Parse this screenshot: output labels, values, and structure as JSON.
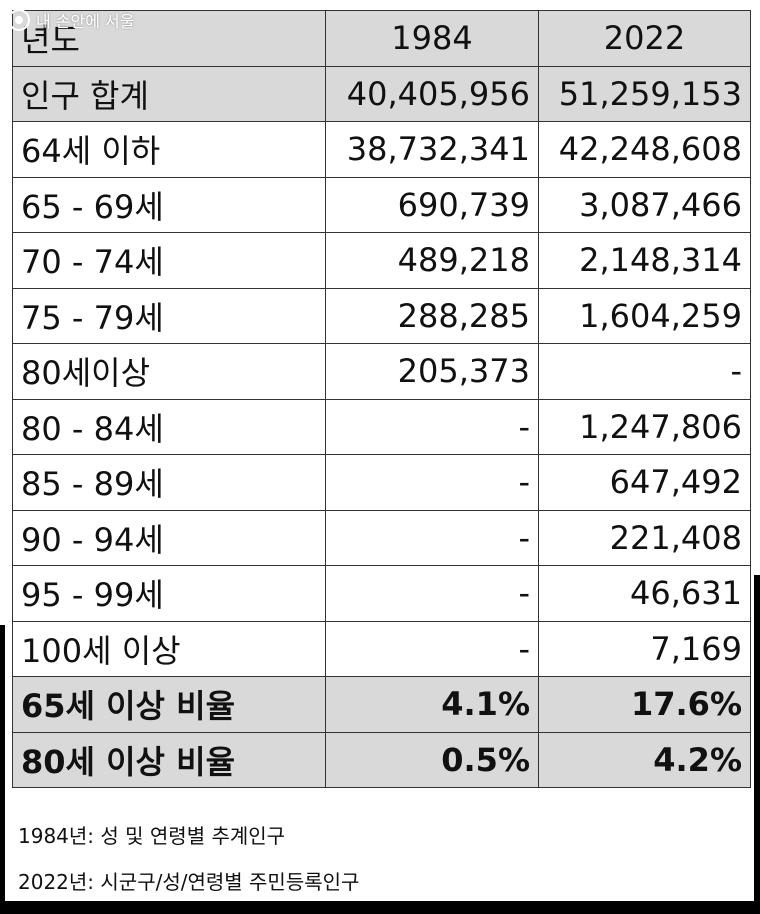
{
  "watermark": {
    "text": "내 손안에 서울"
  },
  "table": {
    "header": {
      "label": "년도",
      "col1": "1984",
      "col2": "2022"
    },
    "total": {
      "label": "인구 합계",
      "v1984": "40,405,956",
      "v2022": "51,259,153"
    },
    "rows": [
      {
        "label": "64세 이하",
        "v1984": "38,732,341",
        "v2022": "42,248,608"
      },
      {
        "label": "65 - 69세",
        "v1984": "690,739",
        "v2022": "3,087,466"
      },
      {
        "label": "70 - 74세",
        "v1984": "489,218",
        "v2022": "2,148,314"
      },
      {
        "label": "75 - 79세",
        "v1984": "288,285",
        "v2022": "1,604,259"
      },
      {
        "label": "80세이상",
        "v1984": "205,373",
        "v2022": "-"
      },
      {
        "label": "80 - 84세",
        "v1984": "-",
        "v2022": "1,247,806"
      },
      {
        "label": "85 - 89세",
        "v1984": "-",
        "v2022": "647,492"
      },
      {
        "label": "90 - 94세",
        "v1984": "-",
        "v2022": "221,408"
      },
      {
        "label": "95 - 99세",
        "v1984": "-",
        "v2022": "46,631"
      },
      {
        "label": "100세 이상",
        "v1984": "-",
        "v2022": "7,169"
      }
    ],
    "ratios": [
      {
        "label": "65세 이상 비율",
        "v1984": "4.1%",
        "v2022": "17.6%"
      },
      {
        "label": "80세 이상 비율",
        "v1984": "0.5%",
        "v2022": "4.2%"
      }
    ]
  },
  "notes": {
    "source_1984": "1984년: 성 및 연령별 추계인구",
    "source_2022": "2022년: 시군구/성/연령별 주민등록인구"
  },
  "colors": {
    "shaded_row": "#d9d9d9",
    "border": "#333333",
    "text": "#111111"
  }
}
